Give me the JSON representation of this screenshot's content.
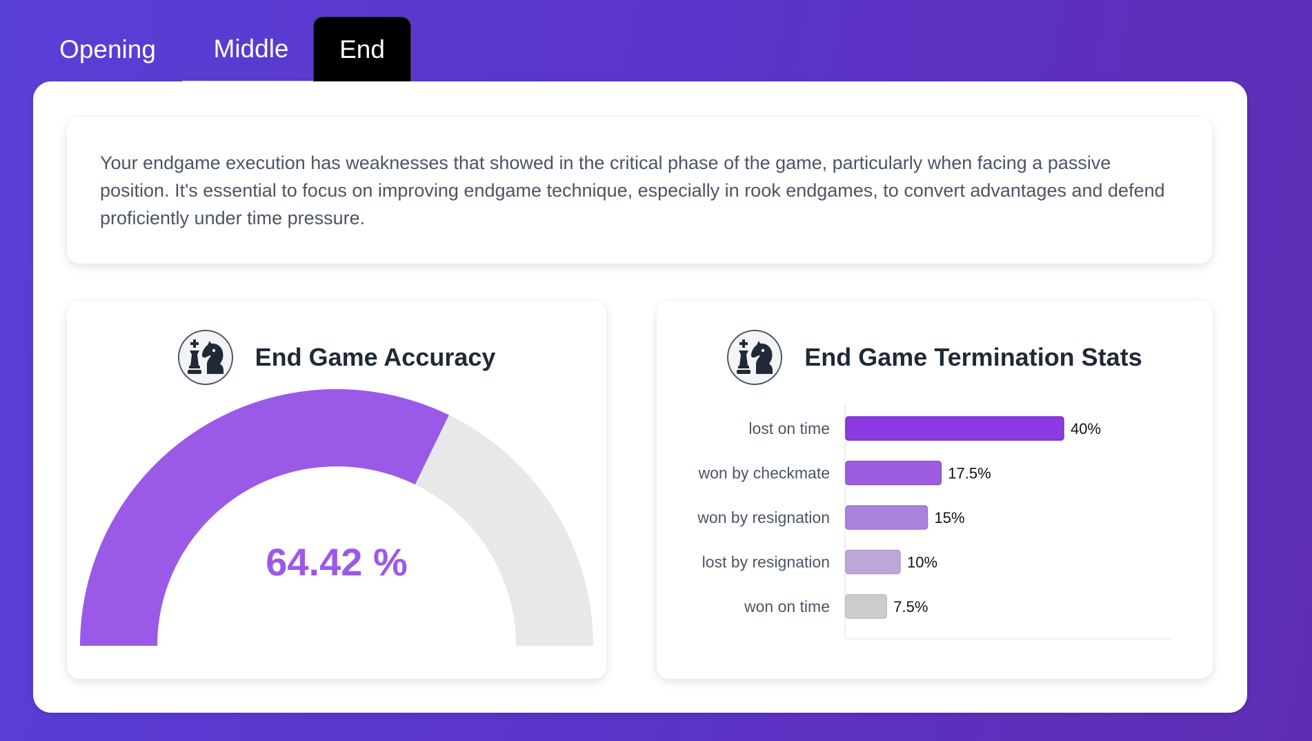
{
  "tabs": {
    "opening": "Opening",
    "middle": "Middle",
    "end": "End",
    "active": "End"
  },
  "summary": {
    "text": "Your endgame execution has weaknesses that showed in the critical phase of the game, particularly when facing a passive position. It's essential to focus on improving endgame technique, especially in rook endgames, to convert advantages and defend proficiently under time pressure."
  },
  "accuracy_card": {
    "title": "End Game Accuracy",
    "icon": "chess-pieces-icon",
    "value_label": "64.42 %"
  },
  "termination_card": {
    "title": "End Game Termination Stats",
    "icon": "chess-pieces-icon"
  },
  "colors": {
    "gauge_fill": "#9b59e8",
    "gauge_track": "#e8e8e8",
    "bars": [
      "#8a3ae0",
      "#9c5ce0",
      "#a983dc",
      "#bda6d8",
      "#cccccc"
    ],
    "bar_borders": [
      "#7a2fd0",
      "#8c4cd0",
      "#9b75cc",
      "#ae98c8",
      "#bcbcbc"
    ]
  },
  "chart_data": [
    {
      "type": "gauge",
      "value": 64.42,
      "range": [
        0,
        100
      ],
      "label": "64.42 %"
    },
    {
      "type": "bar",
      "orientation": "horizontal",
      "categories": [
        "lost on time",
        "won by checkmate",
        "won by resignation",
        "lost by resignation",
        "won on time"
      ],
      "values": [
        40,
        17.5,
        15,
        10,
        7.5
      ],
      "value_labels": [
        "40%",
        "17.5%",
        "15%",
        "10%",
        "7.5%"
      ],
      "xlim": [
        0,
        50
      ]
    }
  ]
}
